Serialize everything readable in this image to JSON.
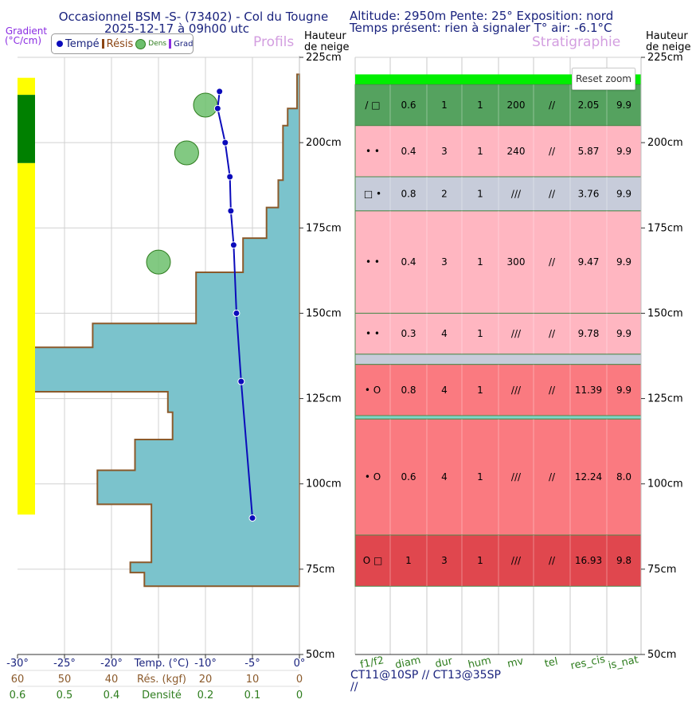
{
  "header": {
    "title_line1": "Occasionnel BSM -S- (73402) - Col du Tougne",
    "title_line2": "2025-12-17 à 09h00 utc",
    "info_line1": "Altitude: 2950m Pente: 25° Exposition: nord",
    "info_line2": "Temps présent: rien à signaler T° air: -6.1°C",
    "profils_title": "Profils",
    "strat_title": "Stratigraphie",
    "gradient_label": "Gradient",
    "gradient_unit": "(°C/cm)",
    "hauteur_label_1": "Hauteur",
    "hauteur_label_2": "de neige"
  },
  "legend": {
    "items": [
      {
        "label": "Tempé",
        "color": "#0b0bbb",
        "symbol": "dot"
      },
      {
        "label": "Résis",
        "color": "#8b4513",
        "symbol": "bar"
      },
      {
        "label": "Dens",
        "color": "#6cbf6c",
        "symbol": "circle"
      },
      {
        "label": "Grad",
        "color": "#8a2be2",
        "symbol": "bar"
      }
    ]
  },
  "reset_zoom_label": "Reset zoom",
  "axes": {
    "temp_ticks": [
      "-30°",
      "-25°",
      "-20°",
      "Temp. (°C)",
      "-10°",
      "-5°",
      "0°"
    ],
    "res_ticks": [
      "60",
      "50",
      "40",
      "Rés. (kgf)",
      "20",
      "10",
      "0"
    ],
    "dens_ticks": [
      "0.6",
      "0.5",
      "0.4",
      "Densité",
      "0.2",
      "0.1",
      "0"
    ],
    "height_ticks": [
      "225cm",
      "200cm",
      "175cm",
      "150cm",
      "125cm",
      "100cm",
      "75cm",
      "50cm"
    ]
  },
  "footer": {
    "tests_line1": "CT11@10SP // CT13@35SP",
    "tests_line2": "//"
  },
  "colors": {
    "resistance_fill": "#7bc3cc",
    "resistance_stroke": "#8b5a2b",
    "temp_line": "#0b0bbb",
    "density": "#6cbf6c",
    "grad_yellow": "#ffff00",
    "grad_green": "#008000",
    "title_violet": "#d39ee0",
    "axis_brown": "#8b5a2b",
    "axis_green": "#2e7d1e",
    "dark_blue": "#1a237e"
  },
  "chart_data": [
    {
      "type": "line",
      "name": "Profils",
      "title": "Profils",
      "y_label": "Hauteur de neige (cm)",
      "ylim": [
        50,
        225
      ],
      "temperature": {
        "xlabel": "Temp. (°C)",
        "xlim": [
          -30,
          0
        ],
        "points": [
          {
            "h": 215,
            "t": -8.5
          },
          {
            "h": 210,
            "t": -8.7
          },
          {
            "h": 200,
            "t": -7.9
          },
          {
            "h": 190,
            "t": -7.4
          },
          {
            "h": 180,
            "t": -7.3
          },
          {
            "h": 170,
            "t": -7.0
          },
          {
            "h": 150,
            "t": -6.7
          },
          {
            "h": 130,
            "t": -6.2
          },
          {
            "h": 90,
            "t": -5.0
          }
        ]
      },
      "resistance": {
        "xlabel": "Rés. (kgf)",
        "xlim": [
          0,
          60
        ],
        "steps": [
          {
            "top": 220,
            "bottom": 210,
            "kgf": 0.5
          },
          {
            "top": 210,
            "bottom": 205,
            "kgf": 2.5
          },
          {
            "top": 205,
            "bottom": 189,
            "kgf": 3.5
          },
          {
            "top": 189,
            "bottom": 181,
            "kgf": 4.5
          },
          {
            "top": 181,
            "bottom": 172,
            "kgf": 7.0
          },
          {
            "top": 172,
            "bottom": 162,
            "kgf": 12.0
          },
          {
            "top": 162,
            "bottom": 147,
            "kgf": 22.0
          },
          {
            "top": 147,
            "bottom": 140,
            "kgf": 44.0
          },
          {
            "top": 140,
            "bottom": 127,
            "kgf": 57.0
          },
          {
            "top": 127,
            "bottom": 121,
            "kgf": 28.0
          },
          {
            "top": 121,
            "bottom": 113,
            "kgf": 27.0
          },
          {
            "top": 113,
            "bottom": 104,
            "kgf": 35.0
          },
          {
            "top": 104,
            "bottom": 94,
            "kgf": 43.0
          },
          {
            "top": 94,
            "bottom": 77,
            "kgf": 31.5
          },
          {
            "top": 77,
            "bottom": 74,
            "kgf": 36.0
          },
          {
            "top": 74,
            "bottom": 70,
            "kgf": 33.0
          }
        ]
      },
      "density": {
        "xlabel": "Densité",
        "xlim": [
          0,
          0.6
        ],
        "points": [
          {
            "h": 211,
            "d": 0.2
          },
          {
            "h": 197,
            "d": 0.24
          },
          {
            "h": 165,
            "d": 0.3
          }
        ]
      },
      "gradient": {
        "label": "Gradient (°C/cm)",
        "bands": [
          {
            "top": 219,
            "bottom": 214,
            "color": "yellow"
          },
          {
            "top": 214,
            "bottom": 194,
            "color": "green"
          },
          {
            "top": 194,
            "bottom": 91,
            "color": "yellow"
          }
        ]
      }
    },
    {
      "type": "table",
      "name": "Stratigraphie",
      "title": "Stratigraphie",
      "columns": [
        "f1/f2",
        "diam",
        "dur",
        "hum",
        "mv",
        "tel",
        "res_cis",
        "is_nat"
      ],
      "top_layer": {
        "top": 220,
        "bottom": 217,
        "color": "#00ee00"
      },
      "layers": [
        {
          "top": 217,
          "bottom": 205,
          "color": "#55a25f",
          "f": "/ □",
          "diam": "0.6",
          "dur": "1",
          "hum": "1",
          "mv": "200",
          "tel": "//",
          "res_cis": "2.05",
          "is_nat": "9.9"
        },
        {
          "top": 205,
          "bottom": 190,
          "color": "#ffb6c1",
          "f": "• •",
          "diam": "0.4",
          "dur": "3",
          "hum": "1",
          "mv": "240",
          "tel": "//",
          "res_cis": "5.87",
          "is_nat": "9.9"
        },
        {
          "top": 190,
          "bottom": 180,
          "color": "#c7ccda",
          "f": "□ •",
          "diam": "0.8",
          "dur": "2",
          "hum": "1",
          "mv": "///",
          "tel": "//",
          "res_cis": "3.76",
          "is_nat": "9.9"
        },
        {
          "top": 180,
          "bottom": 150,
          "color": "#ffb6c1",
          "f": "• •",
          "diam": "0.4",
          "dur": "3",
          "hum": "1",
          "mv": "300",
          "tel": "//",
          "res_cis": "9.47",
          "is_nat": "9.9"
        },
        {
          "top": 150,
          "bottom": 138,
          "color": "#ffb6c1",
          "f": "• •",
          "diam": "0.3",
          "dur": "4",
          "hum": "1",
          "mv": "///",
          "tel": "//",
          "res_cis": "9.78",
          "is_nat": "9.9"
        },
        {
          "top": 138,
          "bottom": 135,
          "color": "#c7ccda",
          "f": "",
          "diam": "",
          "dur": "",
          "hum": "",
          "mv": "",
          "tel": "",
          "res_cis": "",
          "is_nat": ""
        },
        {
          "top": 135,
          "bottom": 120,
          "color": "#fa7a80",
          "f": "• O",
          "diam": "0.8",
          "dur": "4",
          "hum": "1",
          "mv": "///",
          "tel": "//",
          "res_cis": "11.39",
          "is_nat": "9.9"
        },
        {
          "top": 120,
          "bottom": 119,
          "color": "#7fd6c8",
          "f": "",
          "diam": "",
          "dur": "",
          "hum": "",
          "mv": "",
          "tel": "",
          "res_cis": "",
          "is_nat": ""
        },
        {
          "top": 119,
          "bottom": 85,
          "color": "#fa7a80",
          "f": "• O",
          "diam": "0.6",
          "dur": "4",
          "hum": "1",
          "mv": "///",
          "tel": "//",
          "res_cis": "12.24",
          "is_nat": "8.0"
        },
        {
          "top": 85,
          "bottom": 70,
          "color": "#e0474e",
          "f": "O □",
          "diam": "1",
          "dur": "3",
          "hum": "1",
          "mv": "///",
          "tel": "//",
          "res_cis": "16.93",
          "is_nat": "9.8"
        }
      ]
    }
  ]
}
